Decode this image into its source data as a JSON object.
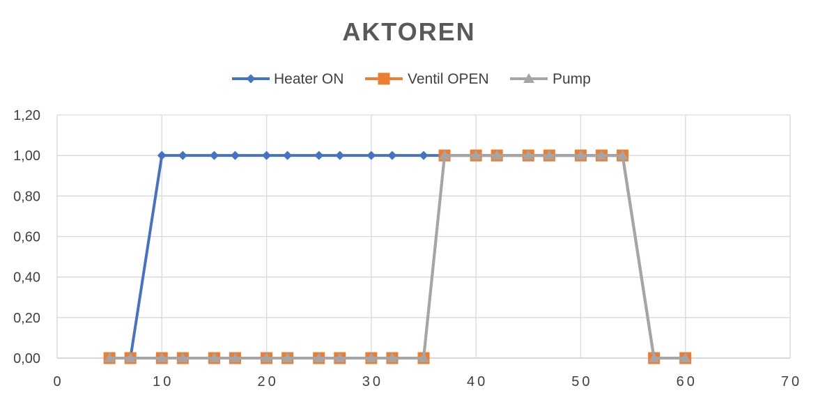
{
  "chart_data": {
    "type": "line",
    "title": "AKTOREN",
    "xlabel": "",
    "ylabel": "",
    "xlim": [
      0,
      70
    ],
    "ylim": [
      0,
      1.2
    ],
    "x_ticks": [
      "0",
      "10",
      "20",
      "30",
      "40",
      "50",
      "60",
      "70"
    ],
    "y_ticks": [
      "0,00",
      "0,20",
      "0,40",
      "0,60",
      "0,80",
      "1,00",
      "1,20"
    ],
    "grid": true,
    "legend_position": "top",
    "series": [
      {
        "name": "Heater ON",
        "color": "#4472C4",
        "marker": "diamond",
        "points": [
          [
            5,
            0
          ],
          [
            7,
            0
          ],
          [
            10,
            1
          ],
          [
            12,
            1
          ],
          [
            15,
            1
          ],
          [
            17,
            1
          ],
          [
            20,
            1
          ],
          [
            22,
            1
          ],
          [
            25,
            1
          ],
          [
            27,
            1
          ],
          [
            30,
            1
          ],
          [
            32,
            1
          ],
          [
            35,
            1
          ],
          [
            37,
            1
          ],
          [
            40,
            1
          ],
          [
            42,
            1
          ],
          [
            45,
            1
          ],
          [
            47,
            1
          ],
          [
            50,
            1
          ],
          [
            52,
            1
          ],
          [
            54,
            1
          ],
          [
            57,
            0
          ],
          [
            60,
            0
          ]
        ]
      },
      {
        "name": "Ventil OPEN",
        "color": "#ED7D31",
        "marker": "square",
        "points": [
          [
            5,
            0
          ],
          [
            7,
            0
          ],
          [
            10,
            0
          ],
          [
            12,
            0
          ],
          [
            15,
            0
          ],
          [
            17,
            0
          ],
          [
            20,
            0
          ],
          [
            22,
            0
          ],
          [
            25,
            0
          ],
          [
            27,
            0
          ],
          [
            30,
            0
          ],
          [
            32,
            0
          ],
          [
            35,
            0
          ],
          [
            37,
            1
          ],
          [
            40,
            1
          ],
          [
            42,
            1
          ],
          [
            45,
            1
          ],
          [
            47,
            1
          ],
          [
            50,
            1
          ],
          [
            52,
            1
          ],
          [
            54,
            1
          ],
          [
            57,
            0
          ],
          [
            60,
            0
          ]
        ]
      },
      {
        "name": "Pump",
        "color": "#A5A5A5",
        "marker": "triangle",
        "points": [
          [
            5,
            0
          ],
          [
            7,
            0
          ],
          [
            10,
            0
          ],
          [
            12,
            0
          ],
          [
            15,
            0
          ],
          [
            17,
            0
          ],
          [
            20,
            0
          ],
          [
            22,
            0
          ],
          [
            25,
            0
          ],
          [
            27,
            0
          ],
          [
            30,
            0
          ],
          [
            32,
            0
          ],
          [
            35,
            0
          ],
          [
            37,
            1
          ],
          [
            40,
            1
          ],
          [
            42,
            1
          ],
          [
            45,
            1
          ],
          [
            47,
            1
          ],
          [
            50,
            1
          ],
          [
            52,
            1
          ],
          [
            54,
            1
          ],
          [
            57,
            0
          ],
          [
            60,
            0
          ]
        ]
      }
    ]
  }
}
